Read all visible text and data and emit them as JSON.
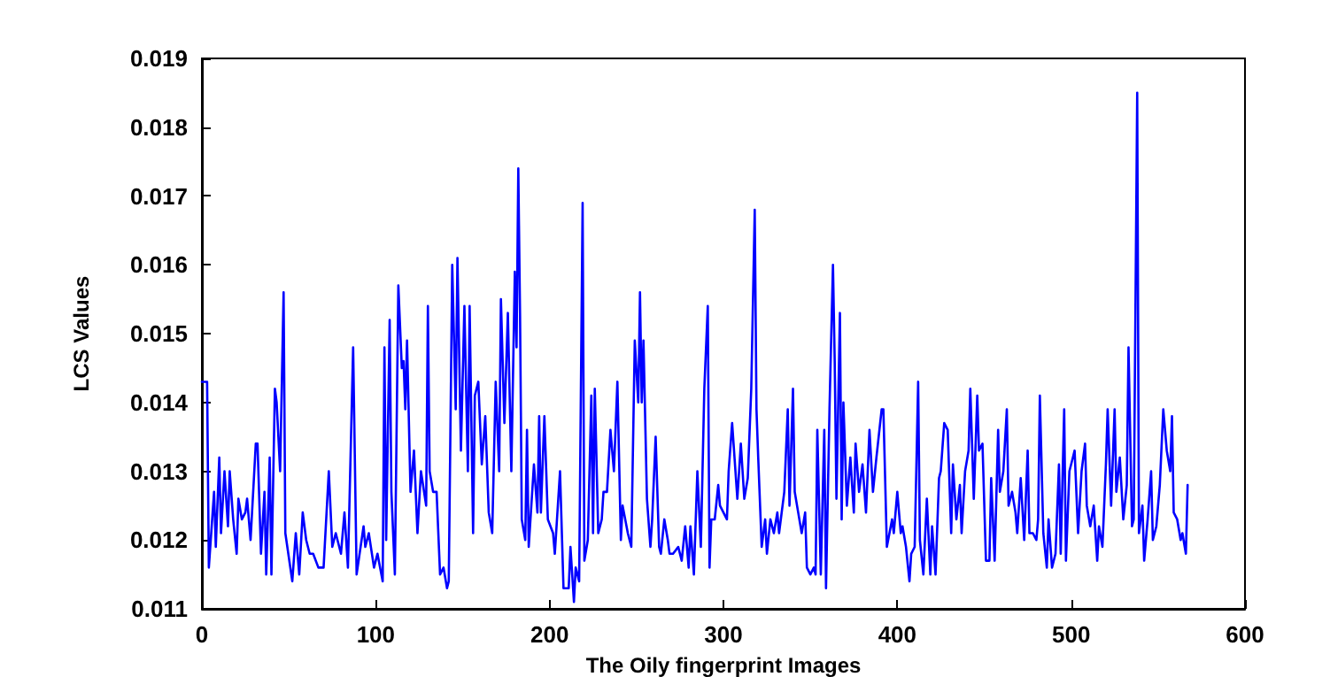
{
  "chart_data": {
    "type": "line",
    "xlabel": "The Oily fingerprint Images",
    "ylabel": "LCS Values",
    "xlim": [
      0,
      600
    ],
    "xticks": [
      0,
      100,
      200,
      300,
      400,
      500,
      600
    ],
    "ylim": [
      0.011,
      0.019
    ],
    "yticks": [
      0.011,
      0.012,
      0.013,
      0.014,
      0.015,
      0.016,
      0.017,
      0.018,
      0.019
    ],
    "grid": false,
    "marker": "none",
    "line_style": "solid",
    "series": [
      {
        "color": "#0000ff",
        "x": [
          0,
          3,
          4,
          7,
          8,
          10,
          11,
          13,
          15,
          16,
          18,
          20,
          21,
          23,
          25,
          26,
          28,
          31,
          32,
          34,
          36,
          37,
          39,
          40,
          42,
          43,
          45,
          47,
          48,
          52,
          54,
          56,
          58,
          60,
          62,
          64,
          67,
          70,
          73,
          75,
          77,
          80,
          82,
          84,
          87,
          89,
          93,
          94,
          96,
          99,
          101,
          104,
          105,
          106,
          108,
          109,
          111,
          113,
          115,
          116,
          117,
          118,
          120,
          122,
          124,
          126,
          129,
          130,
          131,
          133,
          135,
          137,
          139,
          141,
          142,
          144,
          146,
          147,
          149,
          151,
          153,
          154,
          156,
          157,
          159,
          161,
          163,
          165,
          167,
          169,
          171,
          172,
          174,
          176,
          178,
          180,
          181,
          182,
          183,
          184,
          186,
          187,
          188,
          191,
          193,
          194,
          195,
          197,
          199,
          202,
          203,
          206,
          208,
          209,
          211,
          212,
          214,
          215,
          217,
          219,
          220,
          222,
          224,
          225,
          226,
          228,
          230,
          231,
          233,
          235,
          237,
          239,
          241,
          242,
          245,
          247,
          249,
          251,
          252,
          253,
          254,
          256,
          258,
          259,
          261,
          263,
          264,
          266,
          268,
          269,
          271,
          274,
          276,
          278,
          280,
          281,
          283,
          285,
          287,
          289,
          291,
          292,
          293,
          295,
          297,
          298,
          302,
          303,
          305,
          308,
          310,
          312,
          314,
          316,
          318,
          319,
          320,
          322,
          324,
          325,
          327,
          329,
          331,
          332,
          335,
          337,
          338,
          340,
          341,
          343,
          345,
          347,
          348,
          350,
          352,
          353,
          354,
          356,
          358,
          359,
          361,
          363,
          364,
          365,
          367,
          368,
          369,
          371,
          373,
          375,
          376,
          378,
          380,
          382,
          384,
          386,
          388,
          391,
          392,
          394,
          397,
          398,
          400,
          402,
          403,
          405,
          407,
          408,
          410,
          412,
          413,
          415,
          417,
          419,
          420,
          422,
          424,
          425,
          427,
          429,
          431,
          432,
          434,
          436,
          437,
          439,
          441,
          442,
          444,
          446,
          447,
          449,
          451,
          453,
          454,
          456,
          458,
          459,
          461,
          463,
          464,
          466,
          468,
          469,
          471,
          473,
          475,
          476,
          478,
          480,
          481,
          482,
          484,
          486,
          487,
          489,
          491,
          493,
          494,
          496,
          497,
          499,
          501,
          502,
          504,
          506,
          508,
          509,
          511,
          513,
          515,
          516,
          518,
          520,
          521,
          523,
          525,
          526,
          528,
          530,
          532,
          533,
          535,
          536,
          538,
          539,
          541,
          542,
          544,
          546,
          547,
          549,
          551,
          553,
          555,
          557,
          558,
          559,
          561,
          563,
          564,
          566,
          567
        ],
        "values": [
          0.0143,
          0.0143,
          0.0116,
          0.0127,
          0.0119,
          0.0132,
          0.0121,
          0.013,
          0.0122,
          0.013,
          0.0123,
          0.0118,
          0.0126,
          0.0123,
          0.0124,
          0.0126,
          0.012,
          0.0134,
          0.0134,
          0.0118,
          0.0127,
          0.0115,
          0.0132,
          0.0115,
          0.0142,
          0.014,
          0.013,
          0.0156,
          0.0121,
          0.0114,
          0.0121,
          0.0115,
          0.0124,
          0.012,
          0.0118,
          0.0118,
          0.0116,
          0.0116,
          0.013,
          0.0119,
          0.0121,
          0.0118,
          0.0124,
          0.0116,
          0.0148,
          0.0115,
          0.0122,
          0.0119,
          0.0121,
          0.0116,
          0.0118,
          0.0114,
          0.0148,
          0.012,
          0.0152,
          0.0127,
          0.0115,
          0.0157,
          0.0145,
          0.0146,
          0.0139,
          0.0149,
          0.0127,
          0.0133,
          0.0121,
          0.013,
          0.0125,
          0.0154,
          0.013,
          0.0127,
          0.0127,
          0.0115,
          0.0116,
          0.0113,
          0.0114,
          0.016,
          0.0139,
          0.0161,
          0.0133,
          0.0154,
          0.013,
          0.0154,
          0.0121,
          0.0141,
          0.0143,
          0.0131,
          0.0138,
          0.0124,
          0.0121,
          0.0143,
          0.013,
          0.0155,
          0.0137,
          0.0153,
          0.013,
          0.0159,
          0.0148,
          0.0174,
          0.0153,
          0.0123,
          0.012,
          0.0136,
          0.0119,
          0.0131,
          0.0124,
          0.0138,
          0.0124,
          0.0138,
          0.0123,
          0.0121,
          0.0118,
          0.013,
          0.0113,
          0.0113,
          0.0113,
          0.0119,
          0.0111,
          0.0116,
          0.0114,
          0.0169,
          0.0117,
          0.012,
          0.0141,
          0.0121,
          0.0142,
          0.0121,
          0.0123,
          0.0127,
          0.0127,
          0.0136,
          0.013,
          0.0143,
          0.012,
          0.0125,
          0.0121,
          0.0119,
          0.0149,
          0.014,
          0.0156,
          0.014,
          0.0149,
          0.0126,
          0.0119,
          0.0123,
          0.0135,
          0.0119,
          0.0118,
          0.0123,
          0.012,
          0.0118,
          0.0118,
          0.0119,
          0.0117,
          0.0122,
          0.0116,
          0.0122,
          0.0115,
          0.013,
          0.0119,
          0.0142,
          0.0154,
          0.0116,
          0.0123,
          0.0123,
          0.0128,
          0.0125,
          0.0123,
          0.013,
          0.0137,
          0.0126,
          0.0134,
          0.0126,
          0.0129,
          0.0142,
          0.0168,
          0.0139,
          0.0132,
          0.0119,
          0.0123,
          0.0118,
          0.0123,
          0.0121,
          0.0124,
          0.0121,
          0.0127,
          0.0139,
          0.0125,
          0.0142,
          0.0127,
          0.0124,
          0.0121,
          0.0124,
          0.0116,
          0.0115,
          0.0116,
          0.0115,
          0.0136,
          0.0115,
          0.0136,
          0.0113,
          0.0139,
          0.016,
          0.0146,
          0.0126,
          0.0153,
          0.0123,
          0.014,
          0.0125,
          0.0132,
          0.0124,
          0.0134,
          0.0127,
          0.0131,
          0.0124,
          0.0136,
          0.0127,
          0.0132,
          0.0139,
          0.0139,
          0.0119,
          0.0123,
          0.0121,
          0.0127,
          0.0121,
          0.0122,
          0.0119,
          0.0114,
          0.0118,
          0.0119,
          0.0143,
          0.012,
          0.0115,
          0.0126,
          0.0115,
          0.0122,
          0.0115,
          0.0129,
          0.013,
          0.0137,
          0.0136,
          0.0121,
          0.0131,
          0.0123,
          0.0128,
          0.0121,
          0.013,
          0.0133,
          0.0142,
          0.0126,
          0.0141,
          0.0133,
          0.0134,
          0.0117,
          0.0117,
          0.0129,
          0.0117,
          0.0136,
          0.0127,
          0.013,
          0.0139,
          0.0125,
          0.0127,
          0.0124,
          0.0121,
          0.0129,
          0.012,
          0.0133,
          0.0121,
          0.0121,
          0.012,
          0.0123,
          0.0141,
          0.0121,
          0.0116,
          0.0123,
          0.0116,
          0.0118,
          0.0131,
          0.0118,
          0.0139,
          0.0117,
          0.013,
          0.0132,
          0.0133,
          0.0121,
          0.013,
          0.0134,
          0.0125,
          0.0122,
          0.0125,
          0.0117,
          0.0122,
          0.0119,
          0.0131,
          0.0139,
          0.0125,
          0.0139,
          0.0127,
          0.0132,
          0.0123,
          0.0128,
          0.0148,
          0.0122,
          0.0123,
          0.0185,
          0.0121,
          0.0125,
          0.0117,
          0.0123,
          0.013,
          0.012,
          0.0122,
          0.0128,
          0.0139,
          0.0133,
          0.013,
          0.0138,
          0.0124,
          0.0123,
          0.012,
          0.0121,
          0.0118,
          0.0128
        ]
      }
    ]
  }
}
